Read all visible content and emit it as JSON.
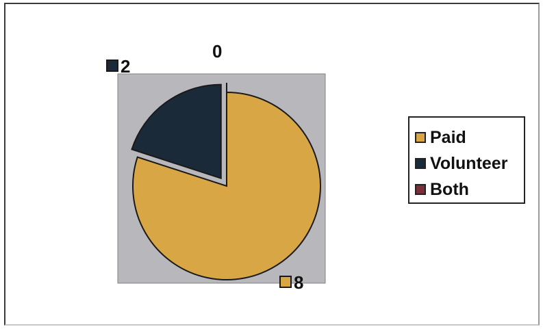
{
  "chart_data": {
    "type": "pie",
    "categories": [
      "Paid",
      "Volunteer",
      "Both"
    ],
    "values": [
      8,
      2,
      0
    ],
    "colors": [
      "#D9A646",
      "#1B2A38",
      "#7A3038"
    ],
    "exploded": [
      "Volunteer",
      "Both"
    ],
    "legend_position": "right",
    "plot_background": "#B8B8BC"
  }
}
